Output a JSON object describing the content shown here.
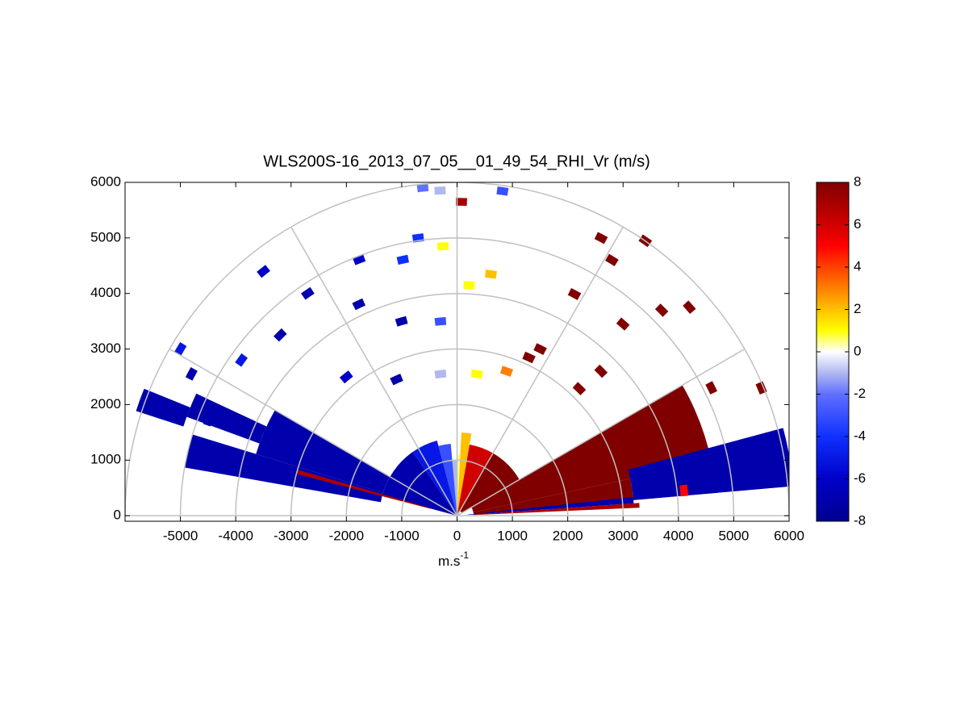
{
  "chart_data": {
    "type": "polar-sector",
    "title": "WLS200S-16_2013_07_05__01_49_54_RHI_Vr (m/s)",
    "xlabel": "m.s",
    "xlabel_sup": "-1",
    "xlim": [
      -6000,
      6000
    ],
    "ylim": [
      -100,
      6000
    ],
    "xticks": [
      -5000,
      -4000,
      -3000,
      -2000,
      -1000,
      0,
      1000,
      2000,
      3000,
      4000,
      5000,
      6000
    ],
    "yticks": [
      0,
      1000,
      2000,
      3000,
      4000,
      5000,
      6000
    ],
    "rings": [
      1000,
      2000,
      3000,
      4000,
      5000,
      6000
    ],
    "spokes": [
      0,
      30,
      60,
      90,
      120,
      150,
      180
    ],
    "clim": [
      -8,
      8
    ],
    "cticks": [
      -8,
      -6,
      -4,
      -2,
      0,
      2,
      4,
      6,
      8
    ],
    "colorscale": [
      {
        "value": -8,
        "color": "#00008f"
      },
      {
        "value": -6,
        "color": "#0000c8"
      },
      {
        "value": -4,
        "color": "#1030ff"
      },
      {
        "value": -2,
        "color": "#6070ff"
      },
      {
        "value": -1,
        "color": "#b0b8f0"
      },
      {
        "value": 0,
        "color": "#ffffff"
      },
      {
        "value": 0.5,
        "color": "#ffff80"
      },
      {
        "value": 1,
        "color": "#ffff00"
      },
      {
        "value": 2,
        "color": "#ffc000"
      },
      {
        "value": 3,
        "color": "#ff8000"
      },
      {
        "value": 4,
        "color": "#ff4000"
      },
      {
        "value": 5,
        "color": "#ff0000"
      },
      {
        "value": 6,
        "color": "#d00000"
      },
      {
        "value": 8,
        "color": "#800000"
      }
    ],
    "cells": [
      {
        "az": [
          12,
          30
        ],
        "r": [
          300,
          4700
        ],
        "value": 8
      },
      {
        "az": [
          5,
          12
        ],
        "r": [
          300,
          3200
        ],
        "value": 8
      },
      {
        "az": [
          5,
          15
        ],
        "r": [
          3200,
          6100
        ],
        "value": -7
      },
      {
        "az": [
          4,
          6
        ],
        "r": [
          200,
          3200
        ],
        "value": -7
      },
      {
        "az": [
          2.5,
          4
        ],
        "r": [
          300,
          3300
        ],
        "value": 7
      },
      {
        "az": [
          30,
          60
        ],
        "r": [
          100,
          1300
        ],
        "value": 8
      },
      {
        "az": [
          60,
          80
        ],
        "r": [
          0,
          1300
        ],
        "value": 6
      },
      {
        "az": [
          80,
          87
        ],
        "r": [
          0,
          1500
        ],
        "value": 2
      },
      {
        "az": [
          87,
          90
        ],
        "r": [
          0,
          1100
        ],
        "value": 0.5
      },
      {
        "az": [
          90,
          95
        ],
        "r": [
          0,
          1000
        ],
        "value": -1
      },
      {
        "az": [
          95,
          105
        ],
        "r": [
          0,
          1300
        ],
        "value": -3
      },
      {
        "az": [
          105,
          125
        ],
        "r": [
          0,
          1400
        ],
        "value": -5
      },
      {
        "az": [
          125,
          165
        ],
        "r": [
          0,
          1400
        ],
        "value": -7
      },
      {
        "az": [
          150,
          163
        ],
        "r": [
          1400,
          3800
        ],
        "value": -7
      },
      {
        "az": [
          163,
          170
        ],
        "r": [
          1400,
          5000
        ],
        "value": -7
      },
      {
        "az": [
          164,
          165.5
        ],
        "r": [
          500,
          3000
        ],
        "value": 7
      },
      {
        "az": [
          155,
          160
        ],
        "r": [
          3800,
          5200
        ],
        "value": -7
      },
      {
        "az": [
          158,
          162
        ],
        "r": [
          5200,
          6100
        ],
        "value": -7
      }
    ],
    "points": [
      {
        "az": 62.5,
        "r": 5636,
        "value": 8
      },
      {
        "az": 55.5,
        "r": 6005,
        "value": 8
      },
      {
        "az": 58.7,
        "r": 5385,
        "value": 8
      },
      {
        "az": 45,
        "r": 5230,
        "value": 8
      },
      {
        "az": 62,
        "r": 4518,
        "value": 8
      },
      {
        "az": 41.8,
        "r": 5630,
        "value": 8
      },
      {
        "az": 49,
        "r": 4570,
        "value": 8
      },
      {
        "az": 63.4,
        "r": 3354,
        "value": 8
      },
      {
        "az": 45,
        "r": 3677,
        "value": 8
      },
      {
        "az": 22.7,
        "r": 5960,
        "value": 8
      },
      {
        "az": 26.6,
        "r": 5140,
        "value": 8
      },
      {
        "az": 46,
        "r": 3180,
        "value": 8
      },
      {
        "az": 65.5,
        "r": 3130,
        "value": 8
      },
      {
        "az": 6.3,
        "r": 4125,
        "value": 5
      },
      {
        "az": 87,
        "r": 4155,
        "value": 1
      },
      {
        "az": 93,
        "r": 4856,
        "value": 1
      },
      {
        "az": 82,
        "r": 4390,
        "value": 2
      },
      {
        "az": 71,
        "r": 2750,
        "value": 3
      },
      {
        "az": 82,
        "r": 2575,
        "value": 1
      },
      {
        "az": 89.2,
        "r": 5650,
        "value": 7
      },
      {
        "az": 144.3,
        "r": 4800,
        "value": -5
      },
      {
        "az": 149,
        "r": 5830,
        "value": -5
      },
      {
        "az": 128.5,
        "r": 5620,
        "value": -6
      },
      {
        "az": 124,
        "r": 4826,
        "value": -7
      },
      {
        "az": 111,
        "r": 4940,
        "value": -6
      },
      {
        "az": 102,
        "r": 4710,
        "value": -4
      },
      {
        "az": 98,
        "r": 5050,
        "value": -4
      },
      {
        "az": 96,
        "r": 5935,
        "value": -2
      },
      {
        "az": 93,
        "r": 5860,
        "value": -1
      },
      {
        "az": 82,
        "r": 5900,
        "value": -3
      },
      {
        "az": 115,
        "r": 4200,
        "value": -7
      },
      {
        "az": 128.7,
        "r": 3200,
        "value": -6
      },
      {
        "az": 134.5,
        "r": 4560,
        "value": -7
      },
      {
        "az": 106,
        "r": 3640,
        "value": -7
      },
      {
        "az": 94.9,
        "r": 3510,
        "value": -3
      },
      {
        "az": 96.7,
        "r": 2568,
        "value": -1
      },
      {
        "az": 114,
        "r": 2685,
        "value": -7
      },
      {
        "az": 152,
        "r": 5435,
        "value": -7
      },
      {
        "az": 159,
        "r": 4810,
        "value": -7
      }
    ]
  }
}
